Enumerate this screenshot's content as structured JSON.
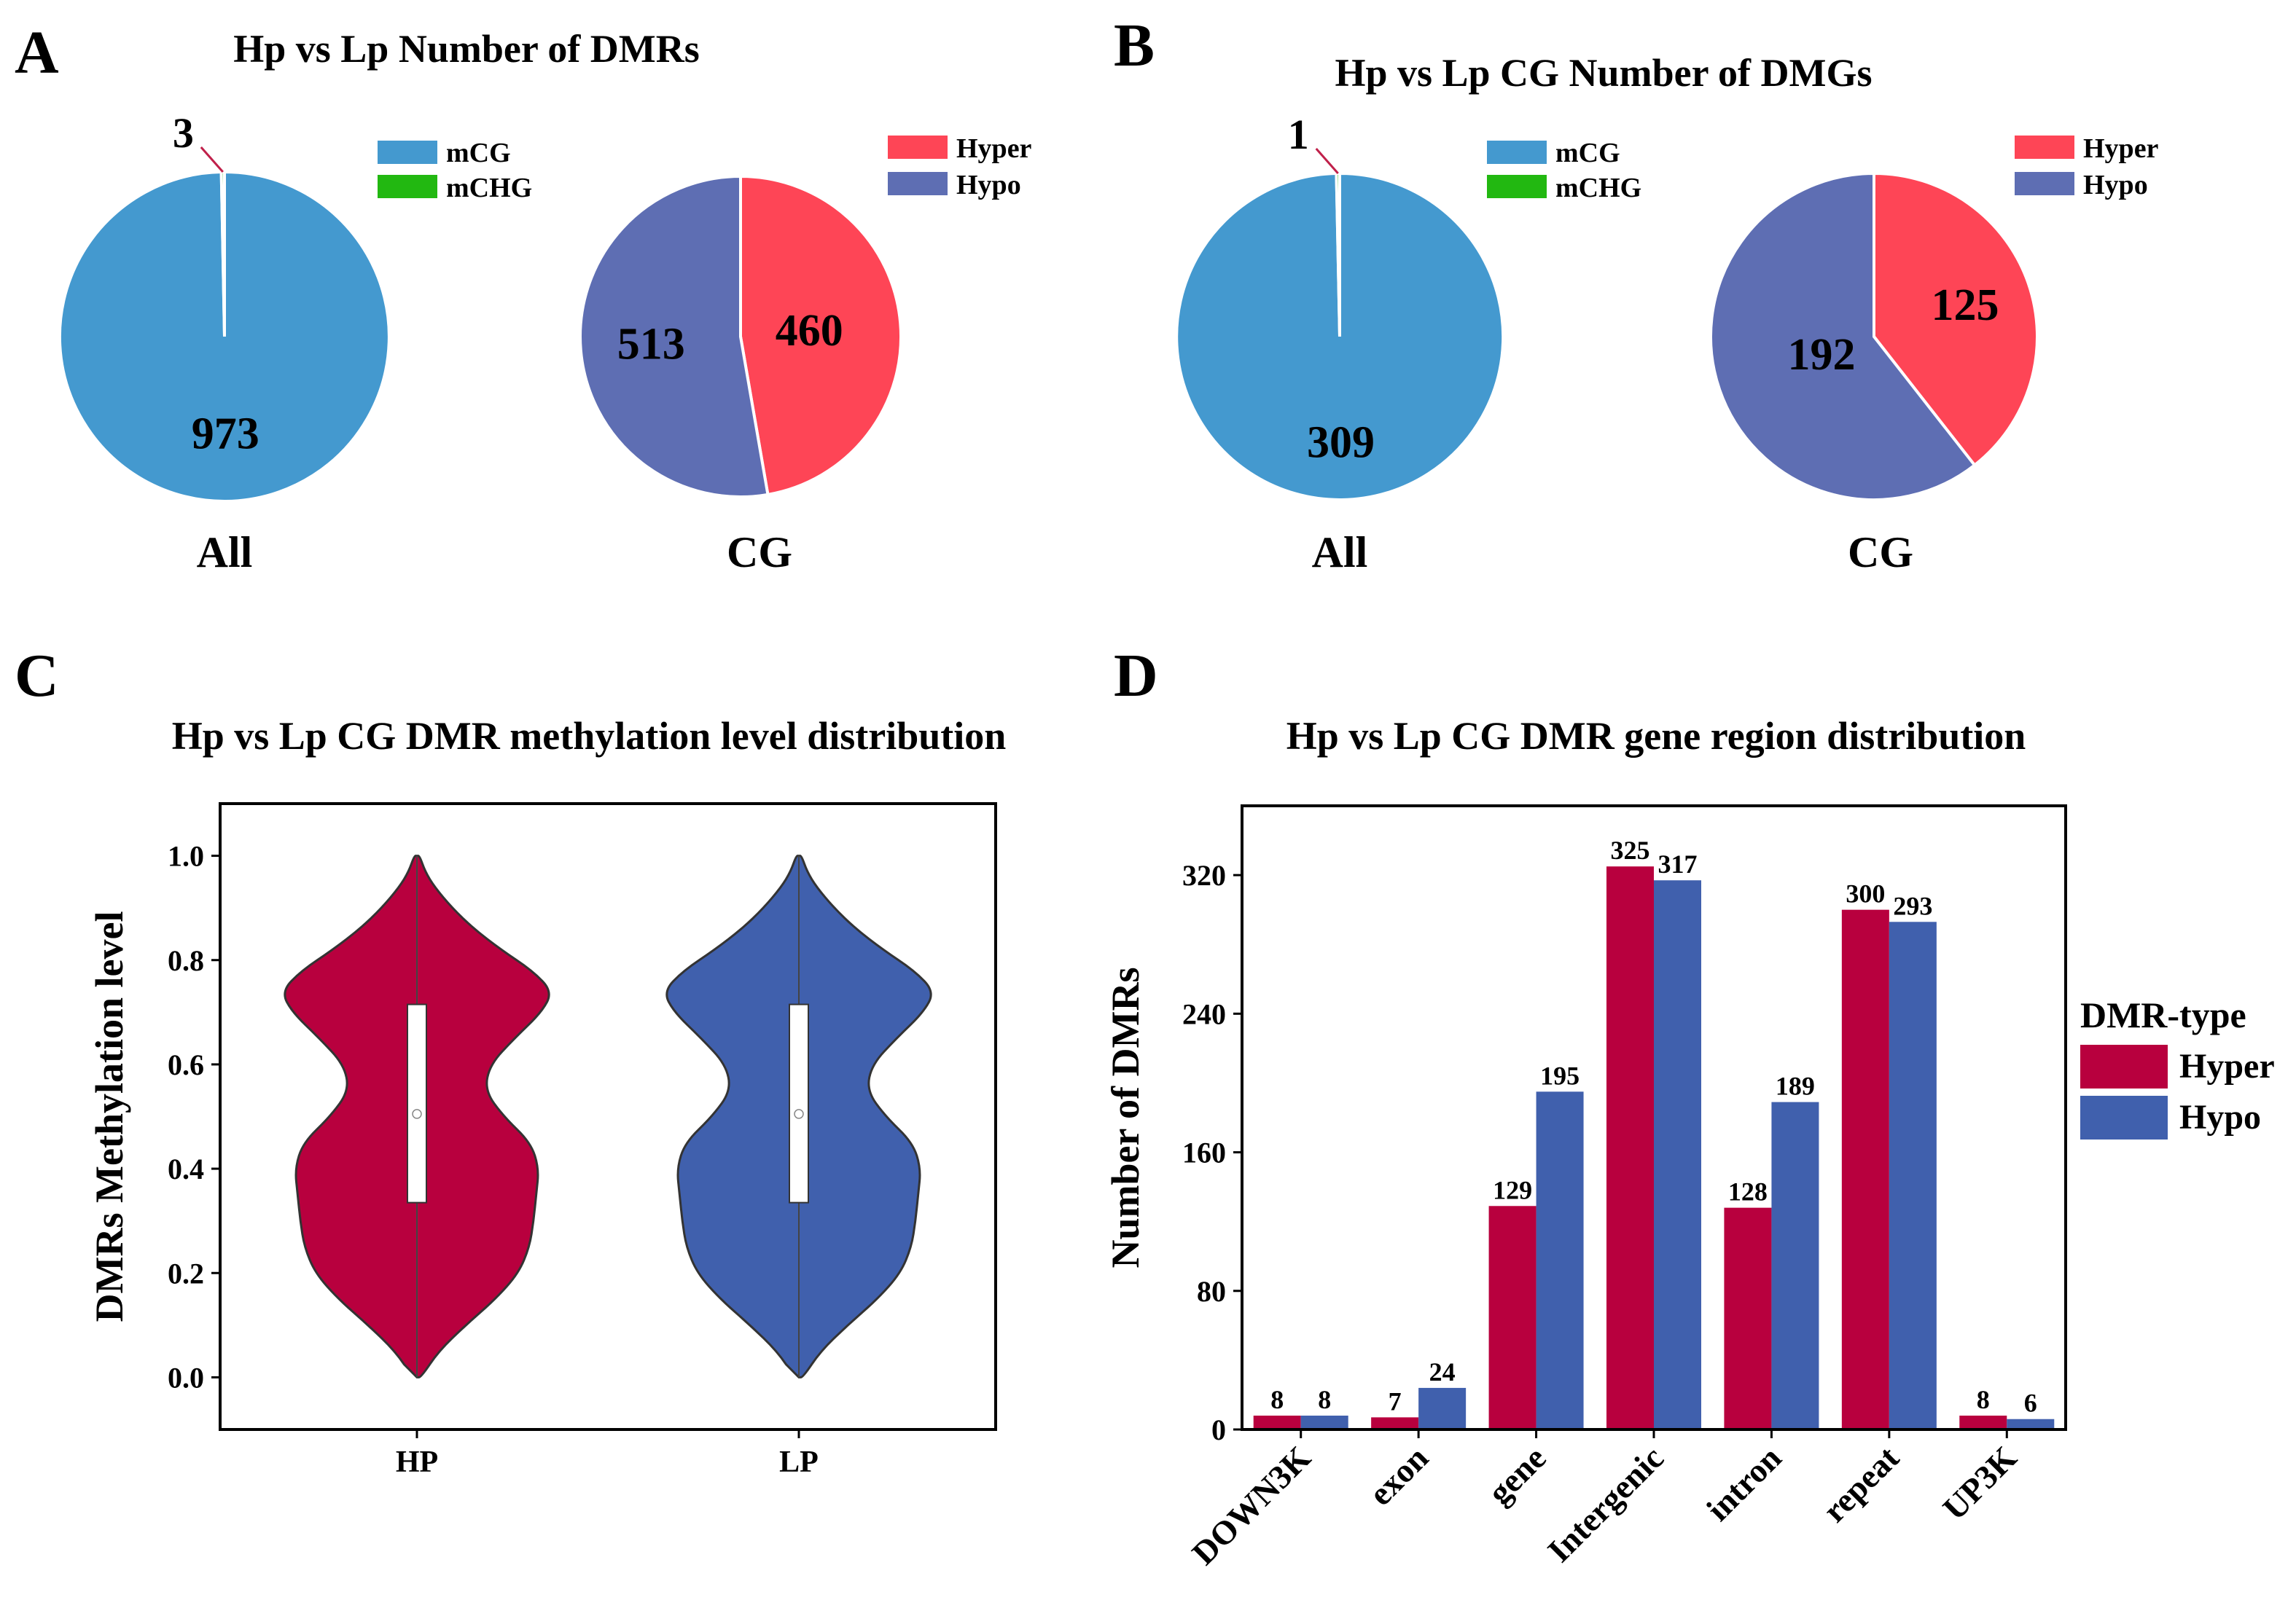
{
  "colors": {
    "mCG": "#4499cf",
    "mCHG": "#22b811",
    "pie_hyper": "#fe4556",
    "pie_hypo": "#5e6eb3",
    "dark_hyper": "#b8003e",
    "dark_hypo": "#4060ad",
    "leader": "#c0204a"
  },
  "panels": {
    "A": {
      "letter": "A",
      "title": "Hp vs Lp Number of DMRs",
      "pie_all_label": "All",
      "pie_cg_label": "CG",
      "legend_all": [
        "mCG",
        "mCHG"
      ],
      "legend_cg": [
        "Hyper",
        "Hypo"
      ]
    },
    "B": {
      "letter": "B",
      "title": "Hp vs Lp CG Number of DMGs",
      "pie_all_label": "All",
      "pie_cg_label": "CG",
      "legend_all": [
        "mCG",
        "mCHG"
      ],
      "legend_cg": [
        "Hyper",
        "Hypo"
      ]
    },
    "C": {
      "letter": "C",
      "title": "Hp vs Lp CG DMR methylation level distribution"
    },
    "D": {
      "letter": "D",
      "title": "Hp vs Lp CG DMR gene region distribution"
    }
  },
  "chart_data": [
    {
      "id": "A-all",
      "type": "pie",
      "title": "Hp vs Lp Number of DMRs",
      "label": "All",
      "slices": [
        {
          "name": "mCG",
          "value": 973,
          "label": "973"
        },
        {
          "name": "mCHG",
          "value": 3,
          "label": "3"
        }
      ]
    },
    {
      "id": "A-cg",
      "type": "pie",
      "label": "CG",
      "slices": [
        {
          "name": "Hyper",
          "value": 460,
          "label": "460"
        },
        {
          "name": "Hypo",
          "value": 513,
          "label": "513"
        }
      ]
    },
    {
      "id": "B-all",
      "type": "pie",
      "title": "Hp vs Lp CG Number of DMGs",
      "label": "All",
      "slices": [
        {
          "name": "mCG",
          "value": 309,
          "label": "309"
        },
        {
          "name": "mCHG",
          "value": 1,
          "label": "1"
        }
      ]
    },
    {
      "id": "B-cg",
      "type": "pie",
      "label": "CG",
      "slices": [
        {
          "name": "Hyper",
          "value": 125,
          "label": "125"
        },
        {
          "name": "Hypo",
          "value": 192,
          "label": "192"
        }
      ]
    },
    {
      "id": "C",
      "type": "violin",
      "title": "Hp vs Lp CG DMR methylation level distribution",
      "xlabel": "",
      "ylabel": "DMRs Methylation level",
      "ylim": [
        -0.1,
        1.1
      ],
      "yticks": [
        0.0,
        0.2,
        0.4,
        0.6,
        0.8,
        1.0
      ],
      "ytick_labels": [
        "0.0",
        "0.2",
        "0.4",
        "0.6",
        "0.8",
        "1.0"
      ],
      "categories": [
        "HP",
        "LP"
      ],
      "box": {
        "q1": 0.335,
        "median": 0.505,
        "q3": 0.715
      },
      "profiles": [
        {
          "y": 0.0,
          "w": 0.03
        },
        {
          "y": 0.05,
          "w": 0.16
        },
        {
          "y": 0.1,
          "w": 0.36
        },
        {
          "y": 0.15,
          "w": 0.58
        },
        {
          "y": 0.2,
          "w": 0.75
        },
        {
          "y": 0.25,
          "w": 0.83
        },
        {
          "y": 0.3,
          "w": 0.86
        },
        {
          "y": 0.35,
          "w": 0.88
        },
        {
          "y": 0.4,
          "w": 0.9
        },
        {
          "y": 0.45,
          "w": 0.84
        },
        {
          "y": 0.5,
          "w": 0.64
        },
        {
          "y": 0.55,
          "w": 0.5
        },
        {
          "y": 0.6,
          "w": 0.54
        },
        {
          "y": 0.65,
          "w": 0.72
        },
        {
          "y": 0.7,
          "w": 0.92
        },
        {
          "y": 0.74,
          "w": 1.0
        },
        {
          "y": 0.78,
          "w": 0.85
        },
        {
          "y": 0.82,
          "w": 0.62
        },
        {
          "y": 0.86,
          "w": 0.42
        },
        {
          "y": 0.9,
          "w": 0.26
        },
        {
          "y": 0.94,
          "w": 0.13
        },
        {
          "y": 0.97,
          "w": 0.06
        },
        {
          "y": 1.0,
          "w": 0.02
        }
      ]
    },
    {
      "id": "D",
      "type": "bar",
      "title": "Hp vs Lp CG DMR gene region distribution",
      "xlabel": "",
      "ylabel": "Number of DMRs",
      "ylim": [
        0,
        360
      ],
      "yticks": [
        0,
        80,
        160,
        240,
        320
      ],
      "categories": [
        "DOWN3K",
        "exon",
        "gene",
        "Intergenic",
        "intron",
        "repeat",
        "UP3K"
      ],
      "legend_title": "DMR-type",
      "series": [
        {
          "name": "Hyper",
          "values": [
            8,
            7,
            129,
            325,
            128,
            300,
            8
          ]
        },
        {
          "name": "Hypo",
          "values": [
            8,
            24,
            195,
            317,
            189,
            293,
            6
          ]
        }
      ]
    }
  ]
}
